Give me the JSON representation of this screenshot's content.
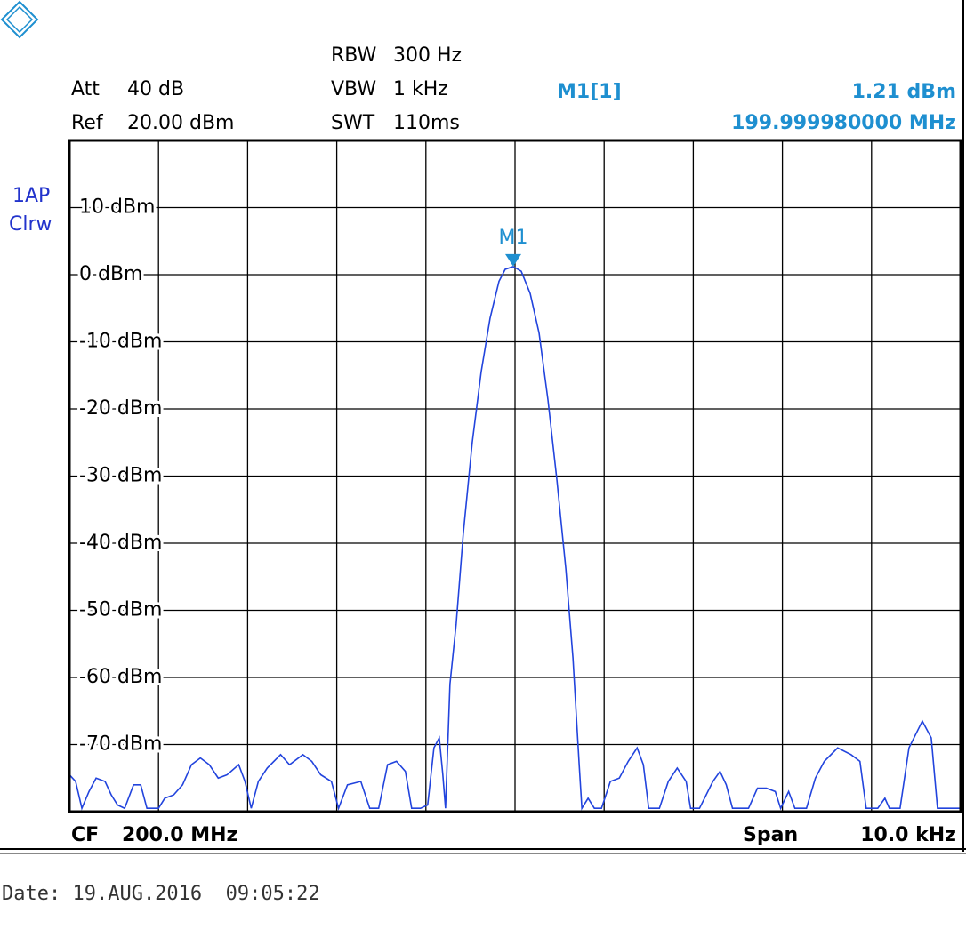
{
  "chart_data": {
    "type": "line",
    "header": {
      "att_label": "Att",
      "att_value": "40 dB",
      "ref_label": "Ref",
      "ref_value": "20.00 dBm",
      "rbw_label": "RBW",
      "rbw_value": "300 Hz",
      "vbw_label": "VBW",
      "vbw_value": "1 kHz",
      "swt_label": "SWT",
      "swt_value": "110ms"
    },
    "trace_labels": [
      "1AP",
      "Clrw"
    ],
    "footer": {
      "cf_label": "CF",
      "cf_value": "200.0 MHz",
      "span_label": "Span",
      "span_value": "10.0 kHz"
    },
    "date": "Date: 19.AUG.2016  09:05:22",
    "marker": {
      "name": "M1",
      "label": "M1[1]",
      "value": 1.21,
      "value_label": "1.21 dBm",
      "x": 199.99998,
      "x_label": "199.999980000 MHz",
      "color": "#1e8fd0"
    },
    "xlim": [
      199.995,
      200.005
    ],
    "ylim": [
      -80,
      20
    ],
    "yticks": [
      {
        "value": 10,
        "label": "10 dBm"
      },
      {
        "value": 0,
        "label": "0 dBm"
      },
      {
        "value": -10,
        "label": "-10 dBm"
      },
      {
        "value": -20,
        "label": "-20 dBm"
      },
      {
        "value": -30,
        "label": "-30 dBm"
      },
      {
        "value": -40,
        "label": "-40 dBm"
      },
      {
        "value": -50,
        "label": "-50 dBm"
      },
      {
        "value": -60,
        "label": "-60 dBm"
      },
      {
        "value": -70,
        "label": "-70 dBm"
      }
    ],
    "x_divisions": 10,
    "grid": true,
    "series": [
      {
        "name": "1",
        "color": "#2244dd",
        "x": [
          199.995,
          199.99507,
          199.99514,
          199.99522,
          199.9953,
          199.9954,
          199.99547,
          199.99554,
          199.99562,
          199.99572,
          199.9958,
          199.99587,
          199.996,
          199.99607,
          199.99617,
          199.99627,
          199.99637,
          199.99647,
          199.99657,
          199.99667,
          199.99677,
          199.9969,
          199.99697,
          199.99704,
          199.99712,
          199.99722,
          199.99737,
          199.99747,
          199.99762,
          199.99772,
          199.99782,
          199.99794,
          199.99802,
          199.99812,
          199.99827,
          199.99837,
          199.99847,
          199.99857,
          199.99867,
          199.99877,
          199.99884,
          199.99894,
          199.99902,
          199.99909,
          199.99915,
          199.99919,
          199.99922,
          199.99927,
          199.99934,
          199.99942,
          199.99952,
          199.99962,
          199.99972,
          199.99982,
          199.99989,
          199.99998,
          200.00007,
          200.00017,
          200.00027,
          200.00037,
          200.00047,
          200.00057,
          200.00065,
          200.00072,
          200.00075,
          200.00082,
          200.00089,
          200.00097,
          200.00107,
          200.00117,
          200.00127,
          200.00137,
          200.00144,
          200.0015,
          200.00162,
          200.00172,
          200.00182,
          200.00192,
          200.00197,
          200.00207,
          200.00222,
          200.0023,
          200.00237,
          200.00244,
          200.00262,
          200.00272,
          200.00282,
          200.00292,
          200.00298,
          200.00307,
          200.00314,
          200.00327,
          200.00337,
          200.00347,
          200.00362,
          200.00377,
          200.00387,
          200.00394,
          200.00407,
          200.00415,
          200.0042,
          200.00432,
          200.00442,
          200.00457,
          200.00467,
          200.00474,
          200.00482,
          200.005
        ],
        "values": [
          -74.5,
          -75.5,
          -79.5,
          -77,
          -75,
          -75.5,
          -77.5,
          -79,
          -79.5,
          -76,
          -76,
          -79.5,
          -79.5,
          -78,
          -77.5,
          -76,
          -73,
          -72,
          -73,
          -75,
          -74.5,
          -73,
          -75.5,
          -79.5,
          -75.5,
          -73.5,
          -71.5,
          -73,
          -71.5,
          -72.5,
          -74.5,
          -75.5,
          -79.5,
          -76,
          -75.5,
          -79.5,
          -79.5,
          -73,
          -72.5,
          -74,
          -79.5,
          -79.5,
          -79,
          -70.5,
          -69,
          -74.5,
          -79.5,
          -61,
          -52,
          -38.5,
          -25,
          -14.5,
          -6.5,
          -1,
          0.8,
          1.21,
          0.5,
          -2.8,
          -8.7,
          -18.7,
          -30.6,
          -43.8,
          -57.1,
          -73,
          -79.5,
          -78,
          -79.5,
          -79.5,
          -75.5,
          -75,
          -72.5,
          -70.5,
          -73,
          -79.5,
          -79.5,
          -75.5,
          -73.5,
          -75.5,
          -79.5,
          -79.5,
          -75.5,
          -74,
          -76,
          -79.5,
          -79.5,
          -76.5,
          -76.5,
          -77,
          -79.5,
          -77,
          -79.5,
          -79.5,
          -75,
          -72.5,
          -70.5,
          -71.5,
          -72.5,
          -79.5,
          -79.5,
          -78,
          -79.5,
          -79.5,
          -70.5,
          -66.5,
          -69,
          -79.5,
          -79.5,
          -79.5
        ]
      }
    ]
  }
}
